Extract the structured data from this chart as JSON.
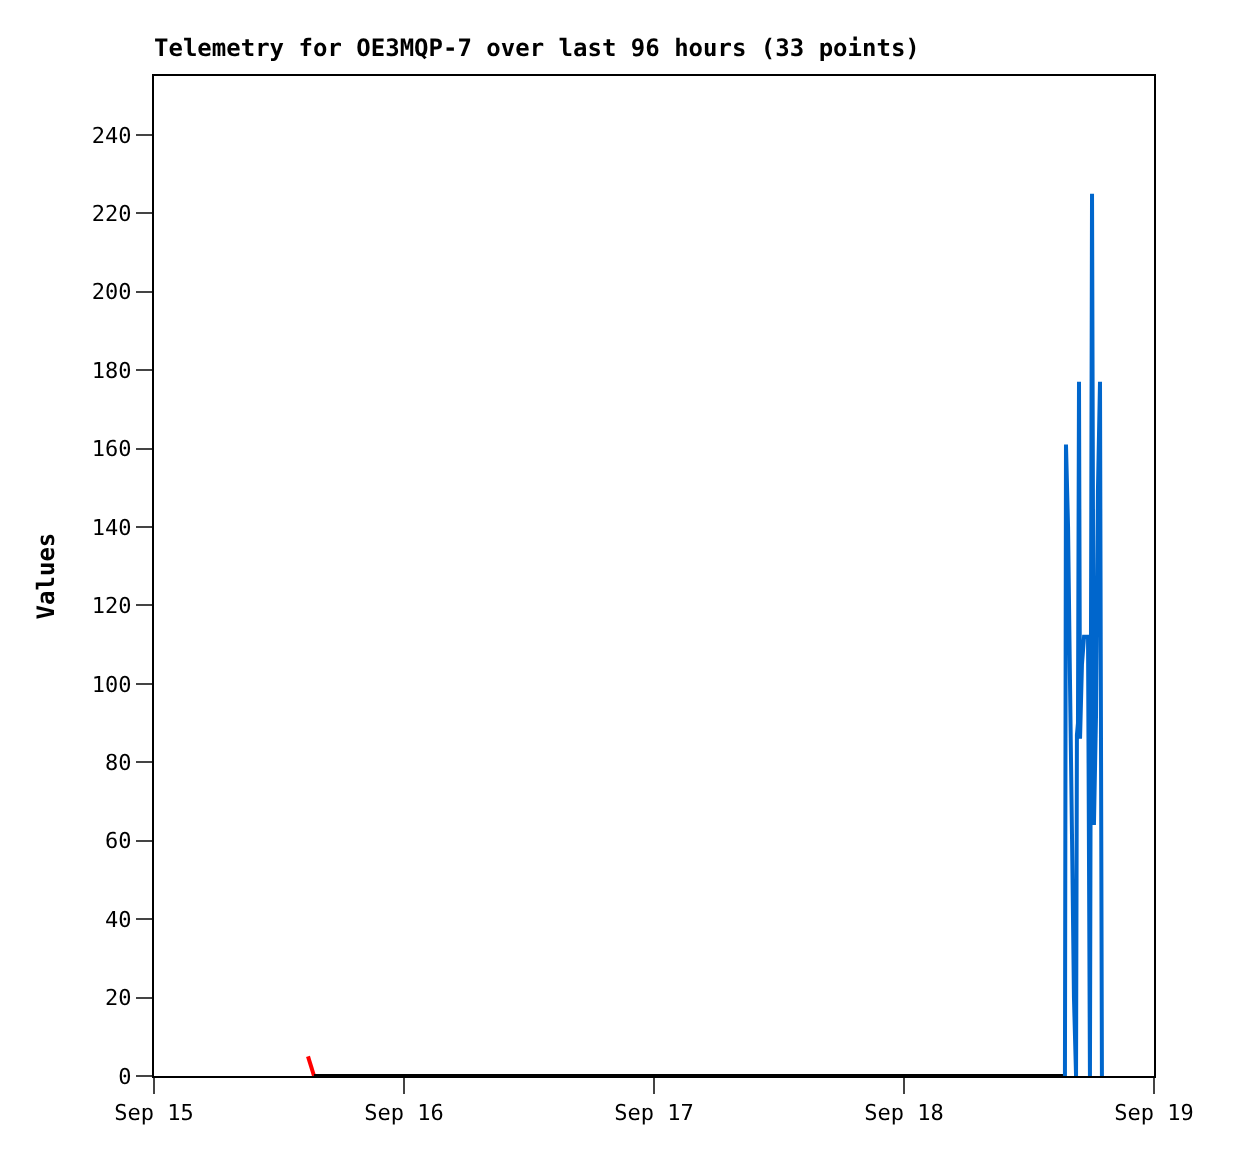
{
  "chart_data": {
    "type": "line",
    "title": "Telemetry for OE3MQP-7 over last 96 hours (33 points)",
    "ylabel": "Values",
    "series": [
      {
        "color": "#ff0000",
        "x": [
          "--09-15T14:47",
          "--09-15T15:22"
        ],
        "values": [
          5,
          0
        ]
      },
      {
        "color": "#000000",
        "x": [
          "--09-15T15:22",
          "--09-18T15:27"
        ],
        "values": [
          0,
          0
        ]
      },
      {
        "color": "#0066cc",
        "x": [
          "--09-18T15:27",
          "--09-18T15:33",
          "--09-18T15:45",
          "--09-18T15:56",
          "--09-18T16:08",
          "--09-18T16:19",
          "--09-18T16:31",
          "--09-18T16:36",
          "--09-18T16:42",
          "--09-18T16:48",
          "--09-18T16:54",
          "--09-18T17:05",
          "--09-18T17:17",
          "--09-18T17:40",
          "--09-18T17:51",
          "--09-18T18:03",
          "--09-18T18:14",
          "--09-18T18:26",
          "--09-18T18:37",
          "--09-18T18:49",
          "--09-18T19:00"
        ],
        "values": [
          0,
          161,
          140,
          101,
          60,
          20,
          0,
          87,
          90,
          177,
          86,
          105,
          112,
          112,
          0,
          225,
          64,
          92,
          149,
          177,
          0
        ]
      }
    ],
    "xlim": [
      "--09-15",
      "--09-19"
    ],
    "xticks": [
      {
        "value": "--09-15",
        "label": "Sep 15"
      },
      {
        "value": "--09-16",
        "label": "Sep 16"
      },
      {
        "value": "--09-17",
        "label": "Sep 17"
      },
      {
        "value": "--09-18",
        "label": "Sep 18"
      },
      {
        "value": "--09-19",
        "label": "Sep 19"
      }
    ],
    "ylim": [
      0,
      255
    ],
    "yticks": [
      0,
      20,
      40,
      60,
      80,
      100,
      120,
      140,
      160,
      180,
      200,
      220,
      240
    ],
    "marker": "none",
    "line_style": "solid"
  }
}
